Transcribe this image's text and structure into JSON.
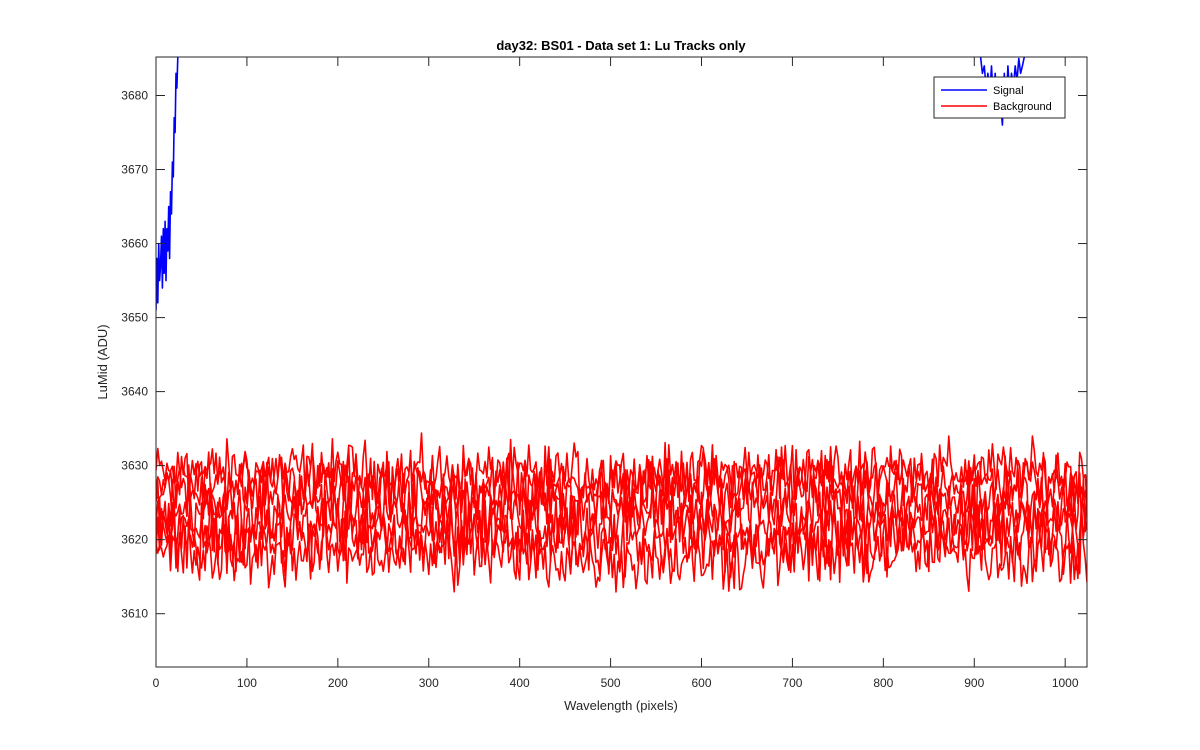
{
  "chart_data": {
    "type": "line",
    "title": "day32: BS01 - Data set 1: Lu Tracks only",
    "xlabel": "Wavelength (pixels)",
    "ylabel": "LuMid (ADU)",
    "xlim": [
      0,
      1024
    ],
    "ylim": [
      3602.8,
      3685.2
    ],
    "xticks": [
      0,
      100,
      200,
      300,
      400,
      500,
      600,
      700,
      800,
      900,
      1000
    ],
    "yticks": [
      3610,
      3620,
      3630,
      3640,
      3650,
      3660,
      3670,
      3680
    ],
    "grid": false,
    "box": true,
    "legend_placement": "top-right",
    "series": [
      {
        "name": "Signal",
        "color": "#0000ff",
        "segments": [
          {
            "x": [
              0,
              1,
              2,
              3,
              4,
              5,
              6,
              7,
              8,
              9,
              10,
              11,
              12,
              13,
              14,
              15,
              16,
              17,
              18,
              19,
              20,
              21,
              22,
              23,
              24
            ],
            "y": [
              3651,
              3658,
              3652,
              3660,
              3655,
              3657,
              3661,
              3654,
              3662,
              3656,
              3663,
              3655,
              3662,
              3659,
              3665,
              3658,
              3667,
              3664,
              3671,
              3669,
              3677,
              3675,
              3683,
              3681,
              3685.2
            ]
          },
          {
            "x": [
              907,
              909,
              911,
              913,
              915,
              917,
              919,
              921,
              923,
              925,
              927,
              929,
              931,
              933,
              935,
              937,
              939,
              941,
              943,
              945,
              947,
              949,
              951,
              953,
              955
            ],
            "y": [
              3685.2,
              3683,
              3684,
              3681,
              3683,
              3680,
              3684,
              3679,
              3683,
              3678,
              3682,
              3679,
              3676,
              3683,
              3678,
              3684,
              3680,
              3683,
              3681,
              3684,
              3682,
              3685,
              3683,
              3684,
              3685.2
            ]
          }
        ]
      },
      {
        "name": "Background",
        "color": "#ff0000",
        "traces": [
          {
            "mean": 3629.0,
            "amp": 3.0
          },
          {
            "mean": 3628.0,
            "amp": 3.0
          },
          {
            "mean": 3626.0,
            "amp": 3.2
          },
          {
            "mean": 3624.0,
            "amp": 3.5
          },
          {
            "mean": 3622.0,
            "amp": 3.5
          },
          {
            "mean": 3620.0,
            "amp": 3.6
          },
          {
            "mean": 3618.0,
            "amp": 3.6
          }
        ],
        "approx_range": [
          3613,
          3635
        ]
      }
    ],
    "legend": [
      "Signal",
      "Background"
    ]
  }
}
